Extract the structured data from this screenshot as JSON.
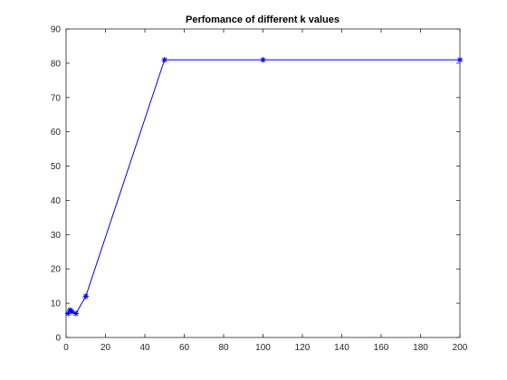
{
  "chart_data": {
    "type": "line",
    "title": "Perfomance of different k values",
    "xlabel": "",
    "ylabel": "",
    "xlim": [
      0,
      200
    ],
    "ylim": [
      0,
      90
    ],
    "grid": false,
    "x_ticks": [
      0,
      20,
      40,
      60,
      80,
      100,
      120,
      140,
      160,
      180,
      200
    ],
    "y_ticks": [
      0,
      10,
      20,
      30,
      40,
      50,
      60,
      70,
      80,
      90
    ],
    "series": [
      {
        "color": "#0000ff",
        "marker": "asterisk",
        "x": [
          1,
          2,
          3,
          5,
          10,
          50,
          100,
          200
        ],
        "y": [
          7,
          8,
          7.5,
          7,
          12,
          81,
          81,
          81
        ]
      }
    ]
  }
}
